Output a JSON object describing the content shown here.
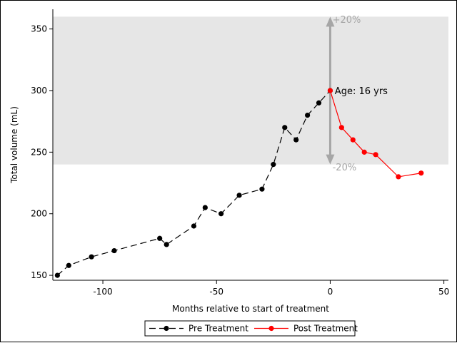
{
  "chart_data": {
    "type": "line",
    "xlabel": "Months relative to start of treatment",
    "ylabel": "Total volume (mL)",
    "xlim": [
      -122,
      52
    ],
    "ylim": [
      146,
      366
    ],
    "x_ticks": [
      -100,
      -50,
      0,
      50
    ],
    "y_ticks": [
      150,
      200,
      250,
      300,
      350
    ],
    "grid": false,
    "band": {
      "y_from": 240,
      "y_to": 360,
      "color": "#e6e6e6"
    },
    "arrow": {
      "x": 0,
      "y_from": 240,
      "y_to": 360,
      "color": "#a6a6a6"
    },
    "annotations": [
      {
        "text": "+20%",
        "x": 1,
        "y": 358,
        "color": "#a6a6a6"
      },
      {
        "text": "Age: 16 yrs",
        "x": 2,
        "y": 300,
        "color": "#000000"
      },
      {
        "text": "-20%",
        "x": 1,
        "y": 238,
        "color": "#a6a6a6"
      }
    ],
    "series": [
      {
        "name": "Pre Treatment",
        "color": "#000000",
        "dashed": true,
        "x": [
          -120,
          -115,
          -105,
          -95,
          -75,
          -72,
          -60,
          -55,
          -48,
          -40,
          -30,
          -25,
          -20,
          -15,
          -10,
          -5,
          0
        ],
        "y": [
          150,
          158,
          165,
          170,
          180,
          175,
          190,
          205,
          200,
          215,
          220,
          240,
          270,
          260,
          280,
          290,
          300
        ]
      },
      {
        "name": "Post Treatment",
        "color": "#ff0000",
        "dashed": false,
        "x": [
          0,
          5,
          10,
          15,
          20,
          30,
          40
        ],
        "y": [
          300,
          270,
          260,
          250,
          248,
          230,
          233
        ]
      }
    ],
    "legend": {
      "placement": "bottom"
    }
  }
}
